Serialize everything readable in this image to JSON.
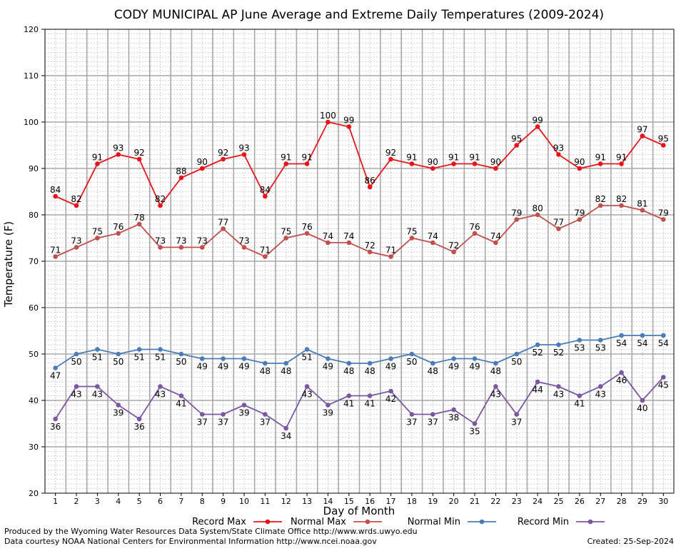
{
  "chart_data": {
    "type": "line",
    "title": "CODY MUNICIPAL AP June Average and Extreme Daily Temperatures (2009-2024)",
    "xlabel": "Day of Month",
    "ylabel": "Temperature (F)",
    "ylim": [
      20,
      120
    ],
    "yticks": [
      20,
      30,
      40,
      50,
      60,
      70,
      80,
      90,
      100,
      110,
      120
    ],
    "x": [
      1,
      2,
      3,
      4,
      5,
      6,
      7,
      8,
      9,
      10,
      11,
      12,
      13,
      14,
      15,
      16,
      17,
      18,
      19,
      20,
      21,
      22,
      23,
      24,
      25,
      26,
      27,
      28,
      29,
      30
    ],
    "grid": true,
    "legend_placement": "bottom",
    "series": [
      {
        "name": "Record Max",
        "color": "#e8141a",
        "label_pos": "above",
        "values": [
          84,
          82,
          91,
          93,
          92,
          82,
          88,
          90,
          92,
          93,
          84,
          91,
          91,
          100,
          99,
          86,
          92,
          91,
          90,
          91,
          91,
          90,
          95,
          99,
          93,
          90,
          91,
          91,
          97,
          95
        ]
      },
      {
        "name": "Normal Max",
        "color": "#c0504d",
        "label_pos": "above",
        "values": [
          71,
          73,
          75,
          76,
          78,
          73,
          73,
          73,
          77,
          73,
          71,
          75,
          76,
          74,
          74,
          72,
          71,
          75,
          74,
          72,
          76,
          74,
          79,
          80,
          77,
          79,
          82,
          82,
          81,
          79
        ]
      },
      {
        "name": "Normal Min",
        "color": "#4a7db8",
        "label_pos": "below",
        "values": [
          47,
          50,
          51,
          50,
          51,
          51,
          50,
          49,
          49,
          49,
          48,
          48,
          51,
          49,
          48,
          48,
          49,
          50,
          48,
          49,
          49,
          48,
          50,
          52,
          52,
          53,
          53,
          54,
          54,
          54
        ]
      },
      {
        "name": "Record Min",
        "color": "#7b57a0",
        "label_pos": "below",
        "values": [
          36,
          43,
          43,
          39,
          36,
          43,
          41,
          37,
          37,
          39,
          37,
          34,
          43,
          39,
          41,
          41,
          42,
          37,
          37,
          38,
          35,
          43,
          37,
          44,
          43,
          41,
          43,
          46,
          40,
          45
        ]
      }
    ]
  },
  "footer": {
    "produced_by": "Produced by the Wyoming Water Resources Data System/State Climate Office http://www.wrds.uwyo.edu",
    "courtesy": "Data courtesy NOAA National Centers for Environmental Information http://www.ncei.noaa.gov",
    "created": "Created:  25-Sep-2024"
  }
}
